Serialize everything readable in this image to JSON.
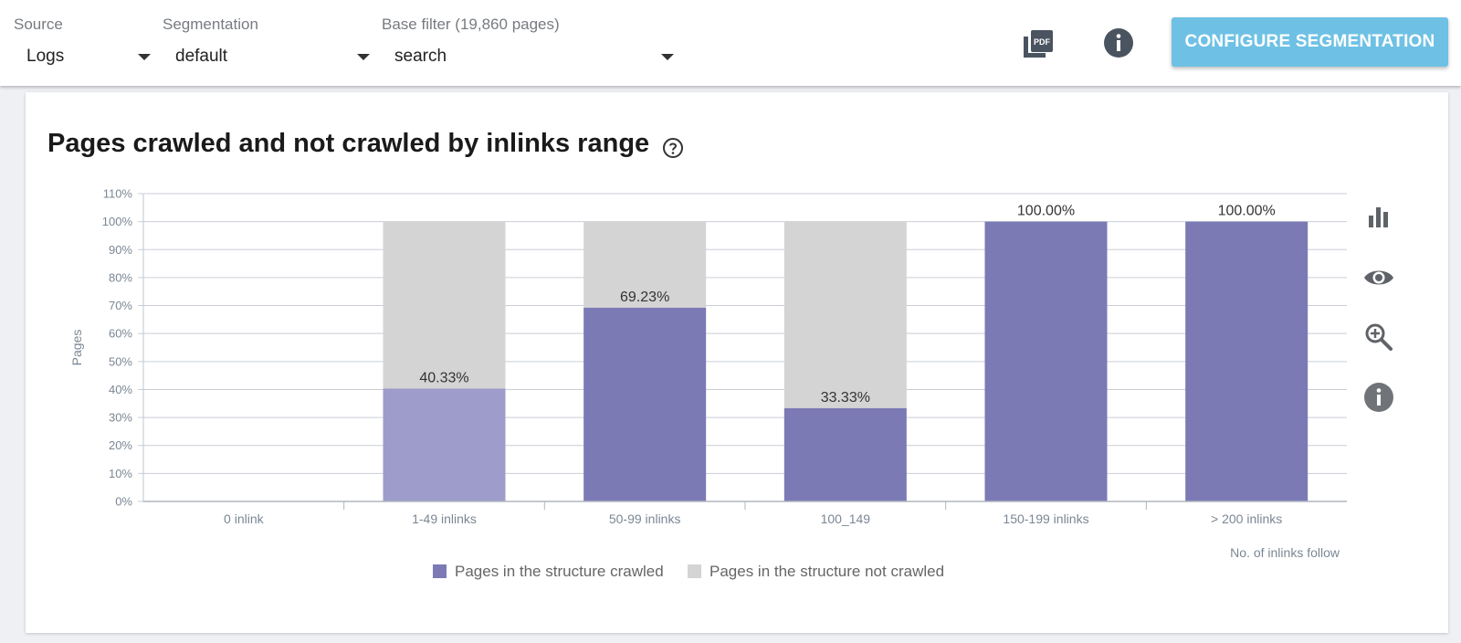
{
  "filters": {
    "source": {
      "label": "Source",
      "value": "Logs"
    },
    "segmentation": {
      "label": "Segmentation",
      "value": "default"
    },
    "base_filter": {
      "label": "Base filter (19,860 pages)",
      "value": "search"
    }
  },
  "toolbar": {
    "configure_label": "CONFIGURE SEGMENTATION",
    "icons": [
      "pdf-icon",
      "info-icon"
    ]
  },
  "side_icons": [
    "bar-chart-icon",
    "eye-icon",
    "zoom-in-icon",
    "info-icon"
  ],
  "colors": {
    "crawled": "#7b7ab5",
    "crawled_highlight": "#9d9cca",
    "not_crawled": "#d4d4d4",
    "accent_button": "#6ec1e4",
    "grid": "#c9cdd6",
    "axis_text": "#7b8795"
  },
  "chart_data": {
    "type": "bar",
    "stacked": true,
    "title": "Pages crawled and not crawled by inlinks range",
    "xlabel": "No. of inlinks follow",
    "ylabel": "Pages",
    "ylim": [
      0,
      110
    ],
    "yticks": [
      0,
      10,
      20,
      30,
      40,
      50,
      60,
      70,
      80,
      90,
      100,
      110
    ],
    "ytick_suffix": "%",
    "categories": [
      "0 inlink",
      "1-49 inlinks",
      "50-99 inlinks",
      "100_149",
      "150-199 inlinks",
      "> 200 inlinks"
    ],
    "series": [
      {
        "name": "Pages in the structure crawled",
        "values": [
          0,
          40.33,
          69.23,
          33.33,
          100,
          100
        ]
      },
      {
        "name": "Pages in the structure not crawled",
        "values": [
          0,
          59.67,
          30.77,
          66.67,
          0,
          0
        ]
      }
    ],
    "data_labels": [
      "",
      "40.33%",
      "69.23%",
      "33.33%",
      "100.00%",
      "100.00%"
    ],
    "legend_position": "bottom-center",
    "grid": true
  }
}
